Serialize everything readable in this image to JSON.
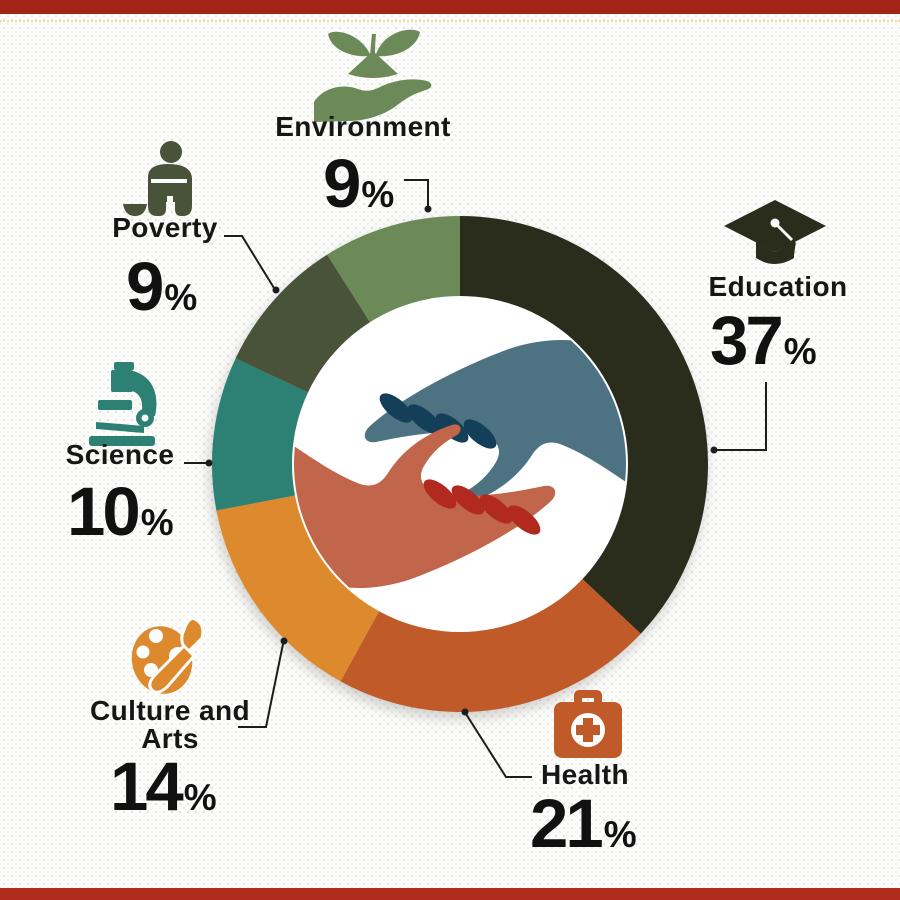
{
  "frame": {
    "top_bar_color": "#a32417",
    "bottom_bar_color": "#b12c1d",
    "accent_line_color": "#ecd9a0",
    "background": "#fcfcfb"
  },
  "chart_data": {
    "type": "pie",
    "donut": true,
    "start_angle_deg": 0,
    "direction": "clockwise",
    "total": 100,
    "legend_position": "around",
    "center_logo": "two-helping-hands",
    "items": [
      {
        "label": "Education",
        "value": 37,
        "unit": "%",
        "color": "#2a2c1c",
        "icon": "graduation-cap-icon"
      },
      {
        "label": "Health",
        "value": 21,
        "unit": "%",
        "color": "#c05a28",
        "icon": "first-aid-bag-icon"
      },
      {
        "label": "Culture and Arts",
        "value": 14,
        "unit": "%",
        "color": "#dd8a2e",
        "icon": "paint-palette-icon"
      },
      {
        "label": "Science",
        "value": 10,
        "unit": "%",
        "color": "#2c8174",
        "icon": "microscope-icon"
      },
      {
        "label": "Poverty",
        "value": 9,
        "unit": "%",
        "color": "#49533a",
        "icon": "begging-person-icon"
      },
      {
        "label": "Environment",
        "value": 9,
        "unit": "%",
        "color": "#6c8a58",
        "icon": "hand-with-sprout-icon"
      }
    ]
  },
  "logo": {
    "top_hand_color": "#4d7383",
    "top_fingers_color": "#133f58",
    "bottom_hand_color": "#c1664a",
    "bottom_fingers_color": "#b22a1f",
    "connector_color": "#1c1c1c"
  }
}
